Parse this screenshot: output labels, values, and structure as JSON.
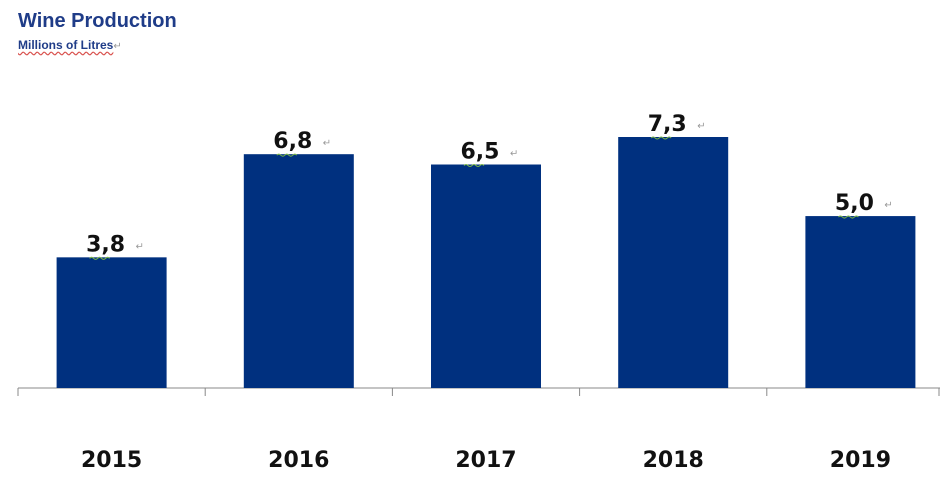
{
  "chart_data": {
    "type": "bar",
    "title": "Wine Production",
    "subtitle": "Millions of Litres",
    "categories": [
      "2015",
      "2016",
      "2017",
      "2018",
      "2019"
    ],
    "values": [
      3.8,
      6.8,
      6.5,
      7.3,
      5.0
    ],
    "value_labels": [
      "3,8",
      "6,8",
      "6,5",
      "7,3",
      "5,0"
    ],
    "ylim": [
      0,
      7.3
    ],
    "xlabel": "",
    "ylabel": "",
    "grid": false,
    "bar_color": "#00307F",
    "axis_color": "#888888"
  }
}
